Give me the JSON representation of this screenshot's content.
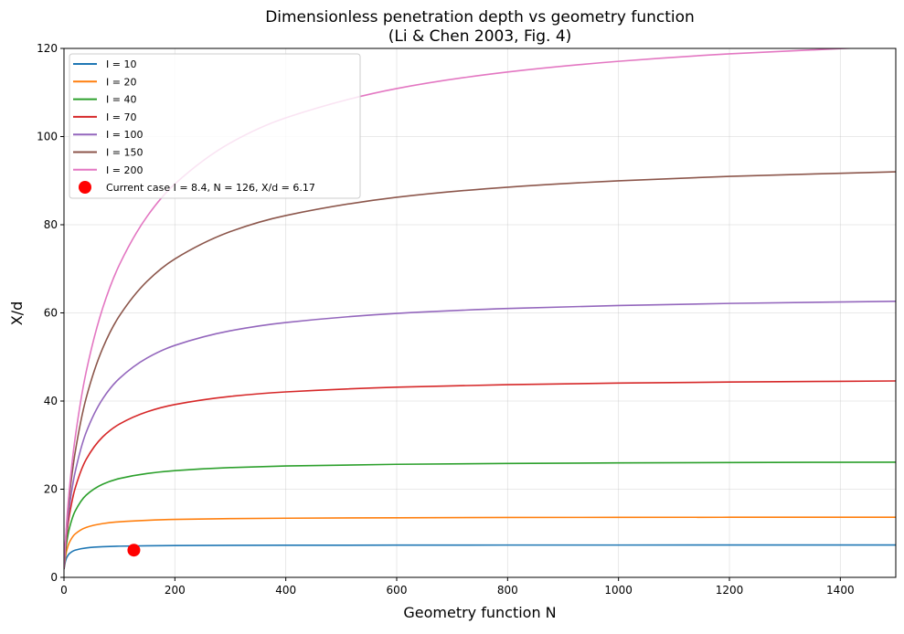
{
  "chart_data": {
    "type": "line",
    "title": "Dimensionless penetration depth vs geometry function",
    "subtitle": "(Li & Chen 2003, Fig. 4)",
    "xlabel": "Geometry function  N",
    "ylabel": "X/d",
    "xlim": [
      0,
      1500
    ],
    "ylim": [
      0,
      120
    ],
    "xticks": [
      0,
      200,
      400,
      600,
      800,
      1000,
      1200,
      1400
    ],
    "yticks": [
      0,
      20,
      40,
      60,
      80,
      100,
      120
    ],
    "grid": true,
    "legend_position": "top-left",
    "x": [
      1,
      2,
      5,
      10,
      20,
      40,
      70,
      100,
      150,
      200,
      300,
      400,
      600,
      800,
      1000,
      1200,
      1500
    ],
    "series": [
      {
        "name": "I = 10",
        "color": "#1f77b4",
        "values": [
          2.53,
          3.28,
          4.5,
          5.41,
          6.16,
          6.68,
          6.95,
          7.07,
          7.16,
          7.21,
          7.26,
          7.29,
          7.31,
          7.33,
          7.33,
          7.34,
          7.35
        ]
      },
      {
        "name": "I = 20",
        "color": "#ff7f0e",
        "values": [
          2.94,
          4.05,
          6.12,
          7.99,
          9.83,
          11.33,
          12.2,
          12.61,
          12.95,
          13.14,
          13.33,
          13.42,
          13.52,
          13.58,
          13.61,
          13.63,
          13.65
        ]
      },
      {
        "name": "I = 40",
        "color": "#2ca02c",
        "values": [
          3.36,
          4.88,
          7.99,
          11.25,
          14.99,
          18.65,
          21.14,
          22.42,
          23.57,
          24.21,
          24.9,
          25.27,
          25.65,
          25.85,
          25.97,
          26.05,
          26.13
        ]
      },
      {
        "name": "I = 70",
        "color": "#d62728",
        "values": [
          3.71,
          5.56,
          9.62,
          14.24,
          20.15,
          26.76,
          31.89,
          34.78,
          37.57,
          39.21,
          41.05,
          42.07,
          43.15,
          43.72,
          44.07,
          44.31,
          44.56
        ]
      },
      {
        "name": "I = 100",
        "color": "#9467bd",
        "values": [
          3.94,
          6.01,
          10.69,
          16.27,
          23.81,
          32.9,
          40.54,
          45.13,
          49.78,
          52.63,
          55.94,
          57.82,
          59.88,
          60.99,
          61.68,
          62.15,
          62.63
        ]
      },
      {
        "name": "I = 150",
        "color": "#8c564b",
        "values": [
          4.19,
          6.51,
          11.93,
          18.65,
          28.25,
          40.68,
          52.03,
          59.33,
          67.19,
          72.25,
          78.44,
          82.09,
          86.23,
          88.52,
          89.97,
          90.98,
          92.01
        ]
      },
      {
        "name": "I = 200",
        "color": "#e377c2",
        "values": [
          4.38,
          6.88,
          12.82,
          20.38,
          31.53,
          46.63,
          61.16,
          70.94,
          81.91,
          89.25,
          98.56,
          104.25,
          110.89,
          114.65,
          117.07,
          118.76,
          120.52
        ]
      }
    ],
    "points": [
      {
        "name": "Current case  I = 8.4,  N = 126,  X/d = 6.17",
        "x": 126,
        "y": 6.17,
        "color": "#ff0000"
      }
    ]
  }
}
